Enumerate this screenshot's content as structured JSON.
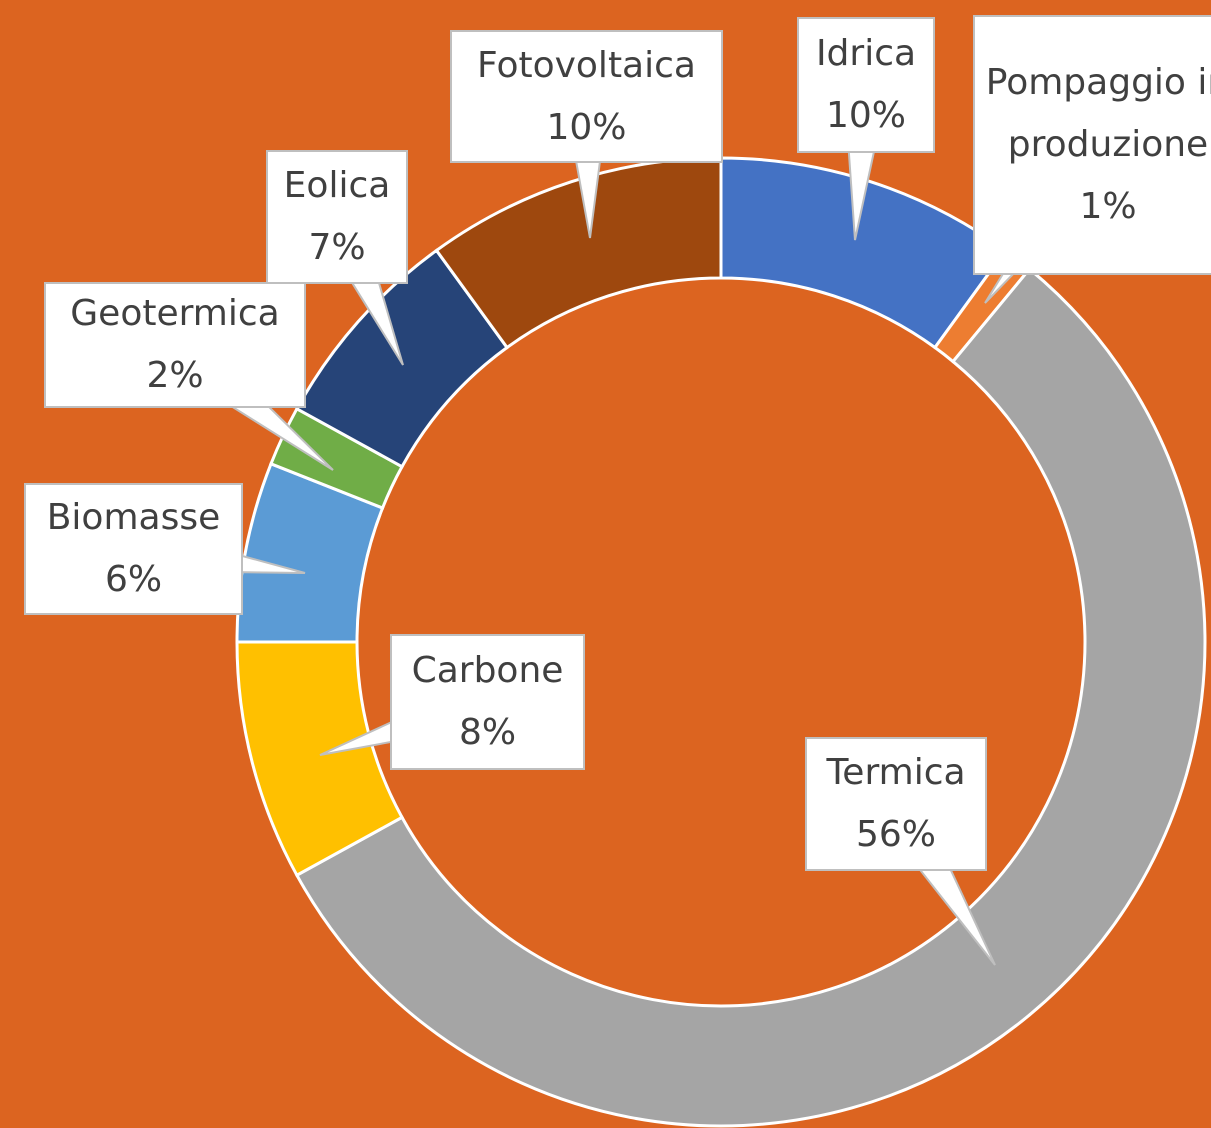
{
  "chart_data": {
    "type": "donut",
    "categories": [
      "Idrica",
      "Pompaggio in produzione",
      "Termica",
      "Carbone",
      "Biomasse",
      "Geotermica",
      "Eolica",
      "Fotovoltaica"
    ],
    "values": [
      10,
      1,
      56,
      8,
      6,
      2,
      7,
      10
    ],
    "value_labels": [
      "10%",
      "1%",
      "56%",
      "8%",
      "6%",
      "2%",
      "7%",
      "10%"
    ],
    "colors": [
      "#4472c4",
      "#ed7d31",
      "#a5a5a5",
      "#ffc000",
      "#5b9bd5",
      "#70ad47",
      "#264478",
      "#9e480e"
    ]
  }
}
